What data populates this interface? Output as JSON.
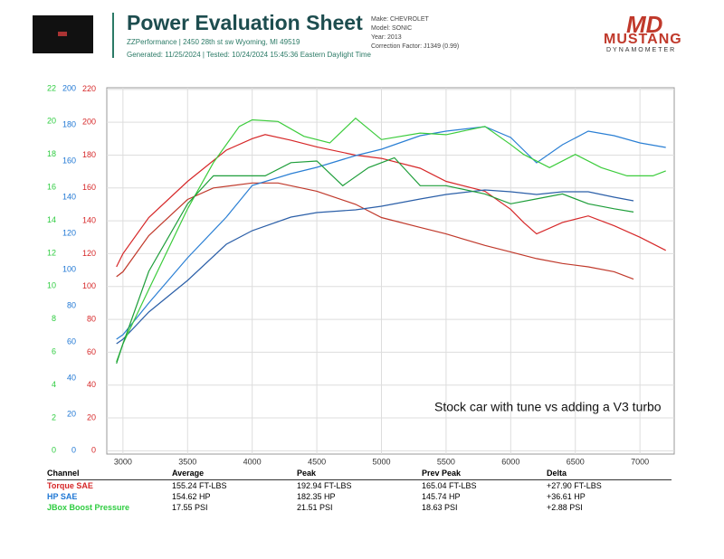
{
  "header": {
    "title": "Power Evaluation Sheet",
    "address": "ZZPerformance | 2450 28th st sw Wyoming, MI 49519",
    "generated": "Generated: 11/25/2024 | Tested: 10/24/2024 15:45:36 Eastern Daylight Time",
    "make": "Make: CHEVROLET",
    "model": "Model: SONIC",
    "year": "Year: 2013",
    "correction": "Correction Factor: J1349 (0.99)",
    "logo_mark": "MD",
    "logo_name": "MUSTANG",
    "logo_sub": "DYNAMOMETER"
  },
  "chart_data": {
    "type": "line",
    "annotation": "Stock car with tune vs adding a V3 turbo",
    "grid": true,
    "xlim": [
      2875,
      7265
    ],
    "xticks": [
      3000,
      3500,
      4000,
      4500,
      5000,
      5500,
      6000,
      6500,
      7000
    ],
    "ylim": [
      -2,
      221
    ],
    "yticks": [
      0,
      20,
      40,
      60,
      80,
      100,
      120,
      140,
      160,
      180,
      200,
      220
    ],
    "ycolor": "#d62728",
    "y2lim": [
      -2,
      200.5
    ],
    "y2ticks": [
      0,
      20,
      40,
      60,
      80,
      100,
      120,
      140,
      160,
      180,
      200
    ],
    "y2color": "#1f77d4",
    "y3lim": [
      -0.2,
      22.05
    ],
    "y3ticks": [
      0,
      2,
      4,
      6,
      8,
      10,
      12,
      14,
      16,
      18,
      20,
      22
    ],
    "y3color": "#2ecc40",
    "series": [
      {
        "color": "#d62728",
        "axis": "y",
        "x": [
          2950,
          3000,
          3200,
          3500,
          3800,
          4000,
          4100,
          4300,
          4500,
          4800,
          5000,
          5300,
          5500,
          5800,
          6000,
          6100,
          6200,
          6400,
          6600,
          6800,
          7000,
          7200
        ],
        "values": [
          112,
          120,
          142,
          164,
          183,
          190,
          192.5,
          189,
          185,
          180,
          178,
          172,
          164,
          158,
          147,
          139,
          132,
          139,
          143,
          137,
          130,
          122
        ]
      },
      {
        "color": "#c0392b",
        "axis": "y",
        "x": [
          2950,
          3000,
          3200,
          3500,
          3700,
          4000,
          4200,
          4500,
          4800,
          5000,
          5300,
          5500,
          5800,
          6000,
          6200,
          6400,
          6600,
          6800,
          6950
        ],
        "values": [
          106,
          109,
          131,
          153,
          160,
          163,
          163,
          158,
          150,
          142,
          136,
          132,
          125,
          121,
          117,
          114,
          112,
          109,
          104.5
        ]
      },
      {
        "color": "#2a7fd4",
        "axis": "y2",
        "x": [
          2950,
          3000,
          3200,
          3500,
          3800,
          4000,
          4300,
          4500,
          4800,
          5000,
          5300,
          5500,
          5800,
          6000,
          6200,
          6400,
          6600,
          6800,
          7000,
          7200
        ],
        "values": [
          61.5,
          64,
          81.5,
          106.5,
          129,
          146.5,
          153,
          156.5,
          163,
          166.5,
          174,
          176.5,
          179,
          173,
          159,
          169,
          176.5,
          174,
          170,
          167.5
        ]
      },
      {
        "color": "#2b5fa8",
        "axis": "y2",
        "x": [
          2950,
          3000,
          3200,
          3500,
          3800,
          4000,
          4300,
          4500,
          4800,
          5000,
          5300,
          5500,
          5800,
          6000,
          6200,
          6400,
          6600,
          6800,
          6950
        ],
        "values": [
          59,
          61.5,
          76.5,
          94,
          114,
          121.5,
          129,
          131.5,
          133,
          135,
          139,
          141.5,
          144,
          143,
          141.5,
          143,
          143,
          140,
          138
        ]
      },
      {
        "color": "#3ccc3c",
        "axis": "y3",
        "x": [
          2950,
          3000,
          3200,
          3500,
          3700,
          3900,
          4000,
          4200,
          4400,
          4600,
          4800,
          5000,
          5300,
          5500,
          5800,
          6000,
          6100,
          6300,
          6500,
          6700,
          6900,
          7100,
          7200
        ],
        "values": [
          5.4,
          6.5,
          9.8,
          14.7,
          17.5,
          19.7,
          20.1,
          20,
          19.1,
          18.7,
          20.2,
          18.9,
          19.3,
          19.2,
          19.7,
          18.6,
          18,
          17.2,
          18,
          17.2,
          16.7,
          16.7,
          17
        ]
      },
      {
        "color": "#1e9e3a",
        "axis": "y3",
        "x": [
          2950,
          3000,
          3200,
          3500,
          3700,
          3900,
          4100,
          4300,
          4500,
          4700,
          4900,
          5100,
          5300,
          5500,
          5800,
          6000,
          6200,
          6400,
          6600,
          6800,
          6950
        ],
        "values": [
          5.3,
          6.5,
          10.9,
          15,
          16.7,
          16.7,
          16.7,
          17.5,
          17.6,
          16.1,
          17.2,
          17.8,
          16.1,
          16.1,
          15.6,
          15,
          15.3,
          15.6,
          15,
          14.7,
          14.5
        ]
      }
    ]
  },
  "table": {
    "header": [
      "Channel",
      "Average",
      "Peak",
      "Prev Peak",
      "Delta"
    ],
    "rows": [
      [
        "Torque SAE",
        "155.24 FT-LBS",
        "192.94 FT-LBS",
        "165.04 FT-LBS",
        "+27.90 FT-LBS"
      ],
      [
        "HP SAE",
        "154.62 HP",
        "182.35 HP",
        "145.74 HP",
        "+36.61 HP"
      ],
      [
        "JBox Boost Pressure",
        "17.55 PSI",
        "21.51 PSI",
        "18.63 PSI",
        "+2.88 PSI"
      ]
    ]
  }
}
